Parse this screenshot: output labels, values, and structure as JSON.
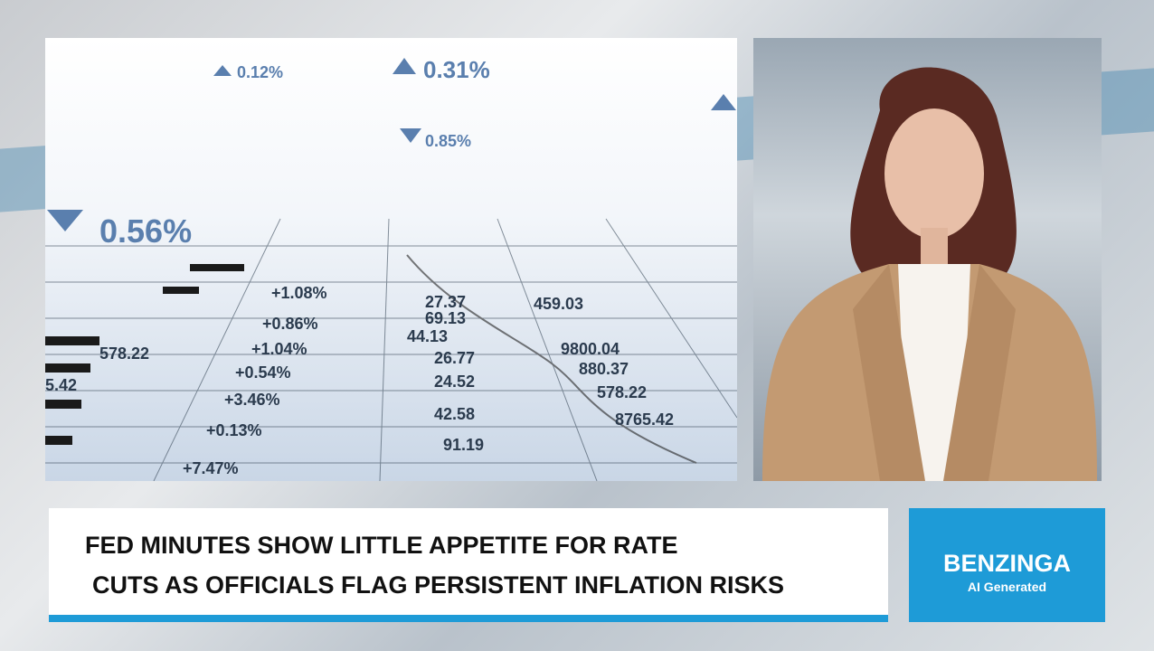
{
  "ticker_image": {
    "big_values": [
      "0.12%",
      "0.31%",
      "0.85%",
      "0.56%"
    ],
    "table_values": [
      "+1.08%",
      "+0.86%",
      "+1.04%",
      "+0.54%",
      "+3.46%",
      "+0.13%",
      "+7.47%",
      "27.37",
      "69.13",
      "44.13",
      "26.77",
      "24.52",
      "42.58",
      "91.19",
      "459.03",
      "9800.04",
      "880.37",
      "578.22",
      "8765.42",
      "578.22",
      "5.42"
    ]
  },
  "lower_third": {
    "headline": [
      "FED MINUTES SHOW LITTLE APPETITE FOR RATE",
      "CUTS AS OFFICIALS FLAG PERSISTENT INFLATION RISKS"
    ],
    "brand": "BENZINGA",
    "brand_tag": "AI Generated"
  }
}
